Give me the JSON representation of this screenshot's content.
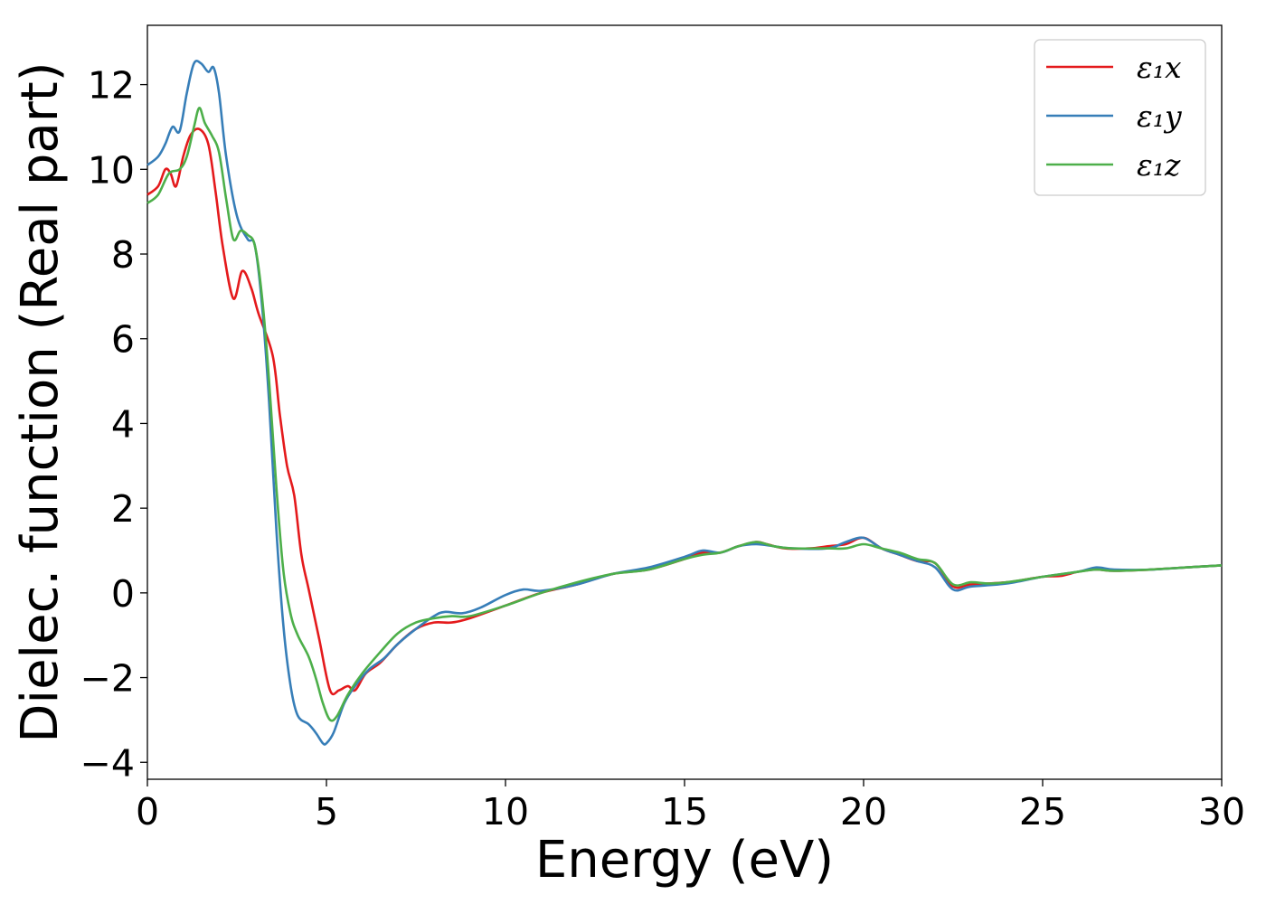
{
  "chart_data": {
    "type": "line",
    "title": "",
    "xlabel": "Energy (eV)",
    "ylabel": "Dielec. function (Real part)",
    "xlim": [
      0,
      30
    ],
    "ylim": [
      -4.4,
      13.4
    ],
    "xticks": [
      0,
      5,
      10,
      15,
      20,
      25,
      30
    ],
    "xtick_labels": [
      "0",
      "5",
      "10",
      "15",
      "20",
      "25",
      "30"
    ],
    "yticks": [
      -4,
      -2,
      0,
      2,
      4,
      6,
      8,
      10,
      12
    ],
    "ytick_labels": [
      "−4",
      "−2",
      "0",
      "2",
      "4",
      "6",
      "8",
      "10",
      "12"
    ],
    "grid": false,
    "legend_position": "top-right",
    "series": [
      {
        "name": "ε₁x",
        "color": "#e41a1c",
        "x": [
          0,
          0.3,
          0.5,
          0.65,
          0.8,
          1.0,
          1.2,
          1.45,
          1.7,
          1.9,
          2.1,
          2.4,
          2.65,
          2.9,
          3.1,
          3.5,
          3.7,
          3.9,
          4.1,
          4.3,
          4.5,
          4.8,
          5.1,
          5.35,
          5.6,
          5.8,
          6.1,
          6.5,
          7.0,
          7.5,
          8.0,
          8.5,
          9.0,
          10.0,
          11.0,
          12.0,
          13.0,
          14.0,
          15.0,
          15.5,
          16.0,
          16.5,
          17.0,
          17.3,
          17.8,
          18.5,
          19.0,
          19.5,
          20.0,
          20.5,
          21.0,
          21.5,
          22.0,
          22.5,
          23.0,
          24.0,
          25.0,
          25.5,
          26.0,
          26.5,
          27.0,
          28.0,
          29.0,
          30.0
        ],
        "y": [
          9.4,
          9.6,
          10.0,
          9.9,
          9.6,
          10.3,
          10.8,
          10.95,
          10.6,
          9.5,
          8.2,
          6.95,
          7.6,
          7.2,
          6.6,
          5.6,
          4.2,
          3.0,
          2.3,
          0.9,
          0.1,
          -1.1,
          -2.3,
          -2.3,
          -2.2,
          -2.3,
          -1.9,
          -1.65,
          -1.2,
          -0.85,
          -0.7,
          -0.7,
          -0.6,
          -0.3,
          0.0,
          0.2,
          0.45,
          0.55,
          0.8,
          0.95,
          0.95,
          1.1,
          1.2,
          1.15,
          1.05,
          1.05,
          1.1,
          1.15,
          1.3,
          1.05,
          0.9,
          0.75,
          0.7,
          0.15,
          0.2,
          0.25,
          0.38,
          0.4,
          0.5,
          0.55,
          0.52,
          0.55,
          0.6,
          0.65
        ]
      },
      {
        "name": "ε₁y",
        "color": "#377eb8",
        "x": [
          0,
          0.3,
          0.5,
          0.7,
          0.9,
          1.1,
          1.3,
          1.5,
          1.7,
          1.85,
          2.0,
          2.2,
          2.5,
          2.8,
          3.0,
          3.2,
          3.4,
          3.6,
          3.8,
          4.0,
          4.2,
          4.5,
          4.7,
          4.9,
          5.0,
          5.2,
          5.5,
          5.8,
          6.2,
          6.6,
          7.0,
          7.5,
          8.0,
          8.3,
          8.8,
          9.3,
          10.0,
          10.5,
          11.0,
          12.0,
          13.0,
          14.0,
          15.0,
          15.5,
          16.0,
          16.5,
          17.0,
          17.5,
          18.0,
          19.0,
          19.5,
          20.0,
          20.5,
          21.0,
          21.5,
          22.0,
          22.5,
          23.0,
          24.0,
          25.0,
          26.0,
          26.5,
          27.0,
          28.0,
          29.0,
          30.0
        ],
        "y": [
          10.1,
          10.3,
          10.6,
          11.0,
          10.9,
          11.8,
          12.5,
          12.5,
          12.3,
          12.4,
          11.8,
          10.3,
          8.9,
          8.35,
          8.2,
          6.8,
          4.5,
          1.5,
          -0.8,
          -2.2,
          -2.9,
          -3.1,
          -3.3,
          -3.55,
          -3.55,
          -3.3,
          -2.6,
          -2.2,
          -1.8,
          -1.55,
          -1.2,
          -0.85,
          -0.55,
          -0.45,
          -0.48,
          -0.35,
          -0.05,
          0.08,
          0.05,
          0.2,
          0.45,
          0.6,
          0.85,
          1.0,
          0.95,
          1.1,
          1.15,
          1.1,
          1.05,
          1.05,
          1.2,
          1.3,
          1.05,
          0.9,
          0.75,
          0.6,
          0.08,
          0.15,
          0.22,
          0.38,
          0.5,
          0.6,
          0.55,
          0.55,
          0.6,
          0.65
        ]
      },
      {
        "name": "ε₁z",
        "color": "#4daf4a",
        "x": [
          0,
          0.3,
          0.6,
          0.9,
          1.1,
          1.3,
          1.45,
          1.6,
          1.8,
          2.0,
          2.2,
          2.4,
          2.6,
          2.8,
          3.0,
          3.2,
          3.4,
          3.6,
          3.8,
          4.0,
          4.2,
          4.5,
          4.7,
          4.9,
          5.1,
          5.3,
          5.6,
          6.0,
          6.5,
          7.0,
          7.5,
          8.0,
          8.5,
          9.0,
          10.0,
          11.0,
          12.0,
          13.0,
          14.0,
          15.0,
          15.5,
          16.0,
          16.5,
          17.0,
          17.5,
          18.0,
          19.0,
          19.5,
          20.0,
          20.5,
          21.0,
          21.5,
          22.0,
          22.5,
          23.0,
          23.5,
          24.0,
          25.0,
          26.0,
          26.5,
          27.0,
          28.0,
          29.0,
          30.0
        ],
        "y": [
          9.2,
          9.4,
          9.9,
          10.0,
          10.3,
          11.0,
          11.45,
          11.1,
          10.8,
          10.4,
          9.3,
          8.35,
          8.55,
          8.45,
          8.2,
          7.0,
          5.0,
          2.5,
          0.5,
          -0.5,
          -1.0,
          -1.5,
          -2.0,
          -2.6,
          -3.0,
          -2.9,
          -2.4,
          -1.9,
          -1.4,
          -0.95,
          -0.7,
          -0.6,
          -0.55,
          -0.55,
          -0.3,
          0.0,
          0.25,
          0.45,
          0.55,
          0.8,
          0.9,
          0.95,
          1.1,
          1.2,
          1.1,
          1.05,
          1.05,
          1.05,
          1.15,
          1.05,
          0.95,
          0.8,
          0.7,
          0.2,
          0.25,
          0.22,
          0.25,
          0.38,
          0.5,
          0.55,
          0.52,
          0.55,
          0.6,
          0.65
        ]
      }
    ]
  }
}
